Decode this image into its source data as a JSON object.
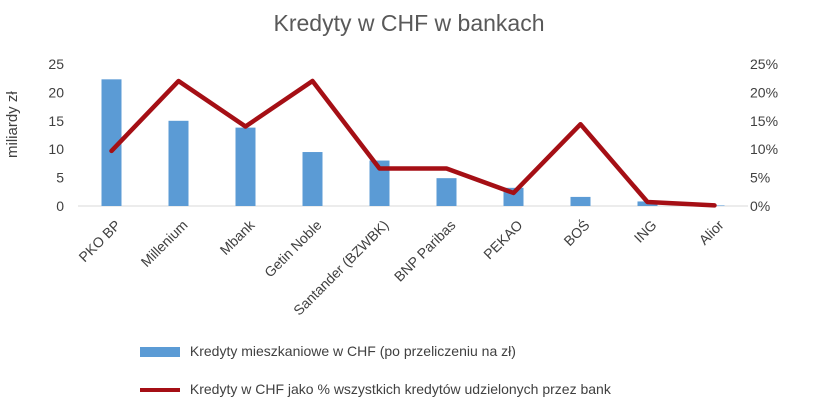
{
  "chart_data": {
    "type": "bar",
    "title": "Kredyty w CHF w bankach",
    "xlabel": "",
    "ylabel": "miliardy zł",
    "categories": [
      "PKO BP",
      "Millenium",
      "Mbank",
      "Getin Noble",
      "Santander (BZWBK)",
      "BNP Paribas",
      "PEKAO",
      "BOŚ",
      "ING",
      "Alior"
    ],
    "ylim": [
      0,
      25
    ],
    "yticks": [
      "0",
      "5",
      "10",
      "15",
      "20",
      "25"
    ],
    "y2lim": [
      0,
      25
    ],
    "y2ticks": [
      "0%",
      "5%",
      "10%",
      "15%",
      "20%",
      "25%"
    ],
    "grid": false,
    "legend_position": "bottom",
    "series": [
      {
        "name": "Kredyty mieszkaniowe w CHF (po przeliczeniu na zł)",
        "type": "bar",
        "axis": "left",
        "color": "#5b9bd5",
        "values": [
          22.3,
          15.0,
          13.8,
          9.5,
          8.0,
          4.9,
          3.2,
          1.6,
          0.8,
          0.1
        ]
      },
      {
        "name": "Kredyty w CHF jako  % wszystkich kredytów udzielonych przez bank",
        "type": "line",
        "axis": "right",
        "color": "#a50f15",
        "values": [
          9.7,
          22.0,
          14.0,
          22.0,
          6.6,
          6.6,
          2.3,
          14.4,
          0.7,
          0.1
        ]
      }
    ]
  }
}
